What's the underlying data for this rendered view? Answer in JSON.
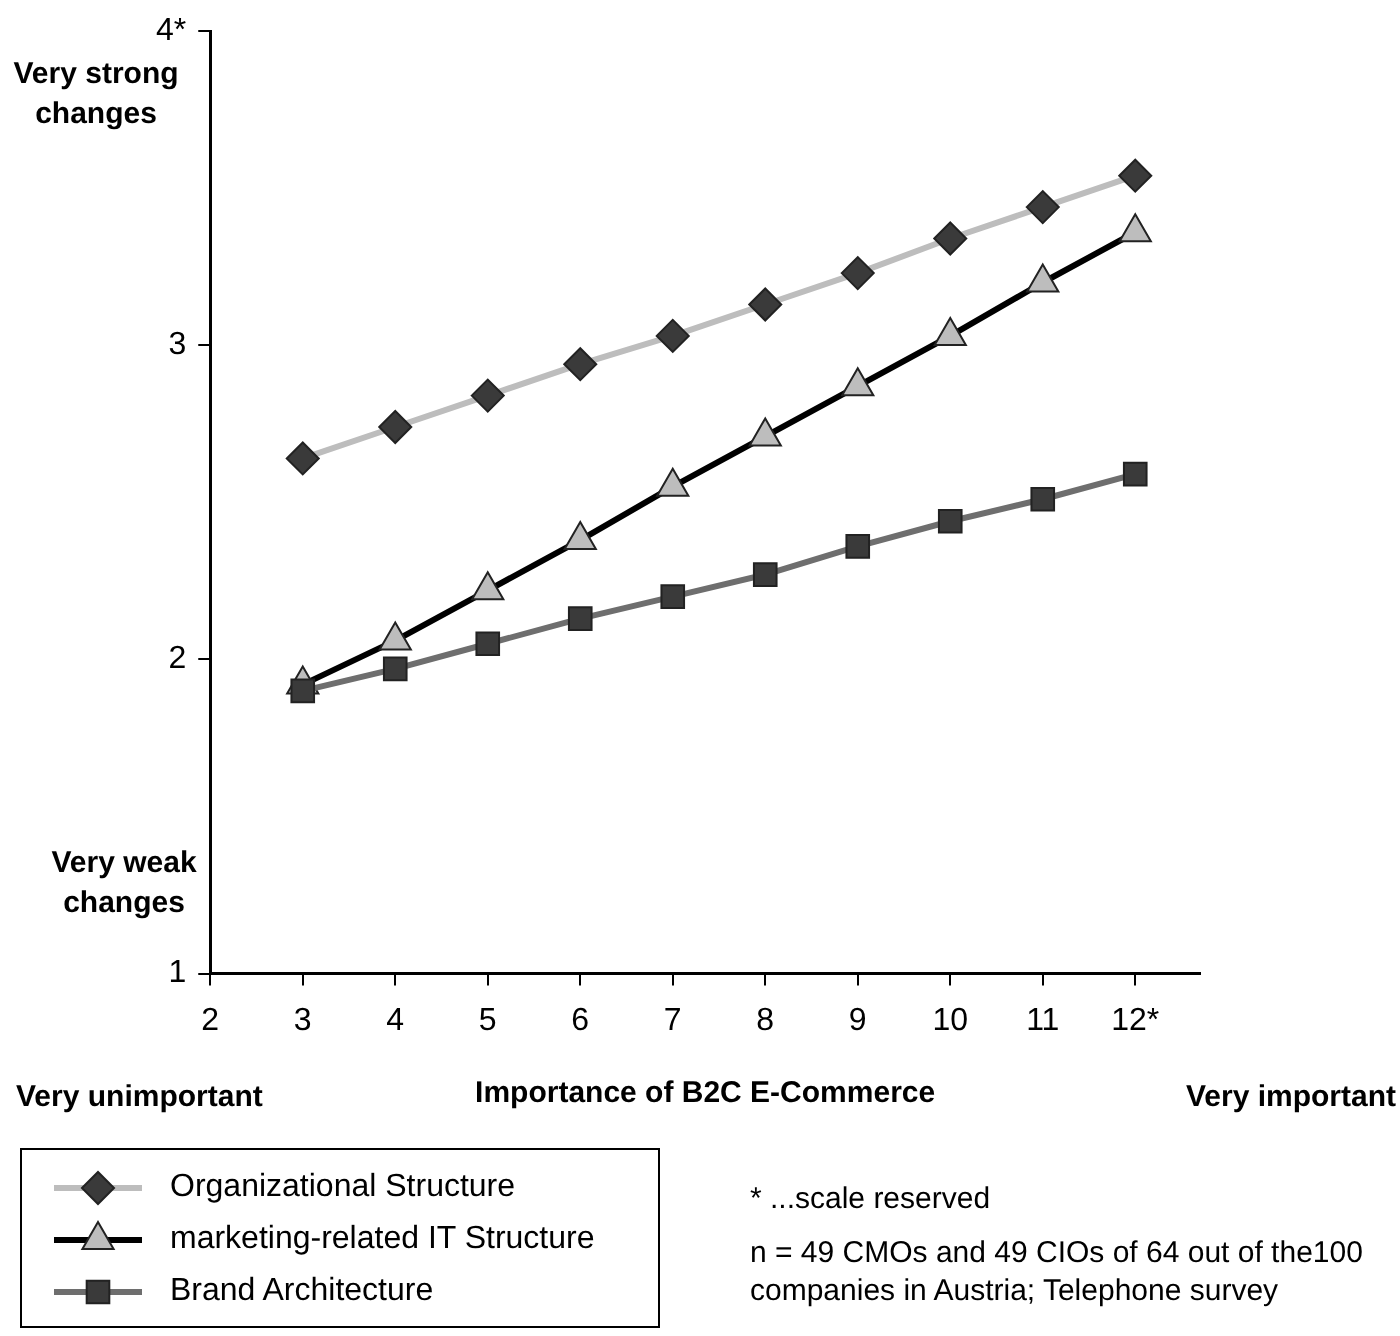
{
  "chart_data": {
    "type": "line",
    "xlabel": "Importance of B2C E-Commerce",
    "x": [
      3,
      4,
      5,
      6,
      7,
      8,
      9,
      10,
      11,
      12
    ],
    "series": [
      {
        "name": "Organizational Structure",
        "color": "#bdbdbd",
        "marker": "diamond",
        "values": [
          2.64,
          2.74,
          2.84,
          2.94,
          3.03,
          3.13,
          3.23,
          3.34,
          3.44,
          3.54
        ]
      },
      {
        "name": "marketing-related IT Structure",
        "color": "#000000",
        "marker": "triangle",
        "values": [
          1.92,
          2.06,
          2.22,
          2.38,
          2.55,
          2.71,
          2.87,
          3.03,
          3.2,
          3.36
        ]
      },
      {
        "name": "Brand Architecture",
        "color": "#6e6e6e",
        "marker": "square",
        "values": [
          1.9,
          1.97,
          2.05,
          2.13,
          2.2,
          2.27,
          2.36,
          2.44,
          2.51,
          2.59
        ]
      }
    ],
    "xlim": [
      2,
      12.7
    ],
    "xticks": [
      2,
      3,
      4,
      5,
      6,
      7,
      8,
      9,
      10,
      11,
      {
        "value": 12,
        "label": "12*"
      }
    ],
    "ylim": [
      1,
      4
    ],
    "yticks": [
      1,
      2,
      3,
      {
        "value": 4,
        "label": "4*"
      }
    ],
    "grid": false,
    "legend": "bottom left",
    "line_style": "solid",
    "annotations": [
      "Very strong changes",
      "Very weak changes",
      "Very unimportant",
      "Very important",
      "* ...scale reserved",
      "n = 49 CMOs and 49 CIOs of 64 out of the100 companies in Austria; Telephone survey"
    ]
  }
}
